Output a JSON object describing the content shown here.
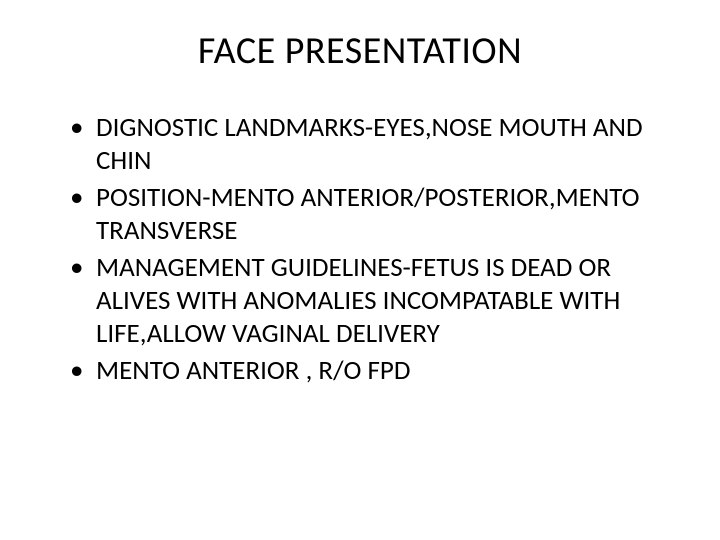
{
  "title": {
    "text": "FACE PRESENTATION",
    "fontsize": 38,
    "color": "#000000"
  },
  "bullets": {
    "fontsize": 27,
    "color": "#000000",
    "items": [
      "DIGNOSTIC LANDMARKS-EYES,NOSE MOUTH AND CHIN",
      "POSITION-MENTO ANTERIOR/POSTERIOR,MENTO TRANSVERSE",
      "MANAGEMENT GUIDELINES-FETUS IS DEAD OR  ALIVES WITH ANOMALIES INCOMPATABLE WITH LIFE,ALLOW VAGINAL DELIVERY",
      "MENTO ANTERIOR , R/O FPD"
    ]
  },
  "background_color": "#ffffff"
}
